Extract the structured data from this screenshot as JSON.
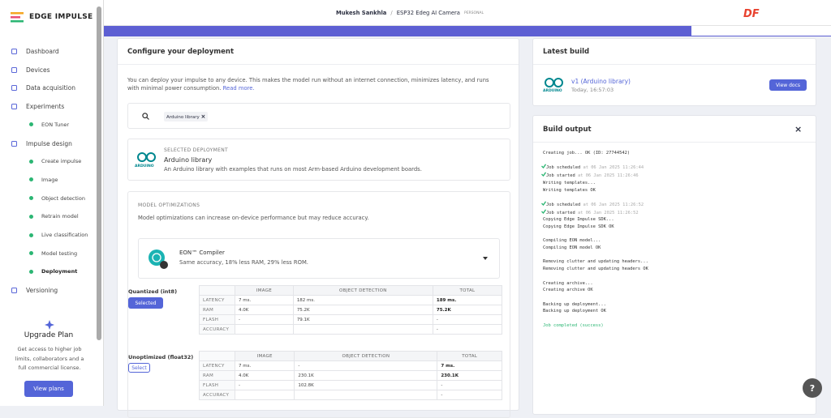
{
  "sidebar": {
    "logo": "EDGE IMPULSE",
    "nav": [
      {
        "label": "Dashboard"
      },
      {
        "label": "Devices"
      },
      {
        "label": "Data acquisition"
      },
      {
        "label": "Experiments",
        "children": [
          "EON Tuner"
        ]
      },
      {
        "label": "Impulse design",
        "children": [
          "Create impulse",
          "Image",
          "Object detection",
          "Retrain model",
          "Live classification",
          "Model testing",
          "Deployment"
        ]
      },
      {
        "label": "Versioning"
      }
    ],
    "active": "Deployment",
    "upgrade": {
      "title": "Upgrade Plan",
      "text": "Get access to higher job limits, collaborators and a full commercial license.",
      "button": "View plans"
    }
  },
  "header": {
    "user": "Mukesh Sankhla",
    "separator": "/",
    "project": "ESP32 Edeg AI Camera",
    "badge": "PERSONAL",
    "brand": "DF"
  },
  "configure": {
    "title": "Configure your deployment",
    "description": "You can deploy your impulse to any device. This makes the model run without an internet connection, minimizes latency, and runs with minimal power consumption.",
    "read_more": "Read more.",
    "search_chip": "Arduino library",
    "chip_close": "×",
    "selected": {
      "logo_text": "ARDUINO",
      "caption": "SELECTED DEPLOYMENT",
      "name": "Arduino library",
      "description": "An Arduino library with examples that runs on most Arm-based Arduino development boards."
    },
    "optimizations": {
      "caption": "MODEL OPTIMIZATIONS",
      "description": "Model optimizations can increase on-device performance but may reduce accuracy.",
      "compiler": {
        "name": "EON™ Compiler",
        "description": "Same accuracy, 18% less RAM, 29% less ROM."
      },
      "columns": [
        "IMAGE",
        "OBJECT DETECTION",
        "TOTAL"
      ],
      "variants": [
        {
          "name": "Quantized (int8)",
          "button": "Selected",
          "rows": [
            [
              "LATENCY",
              "7 ms.",
              "182 ms.",
              "189 ms."
            ],
            [
              "RAM",
              "4.0K",
              "75.2K",
              "75.2K"
            ],
            [
              "FLASH",
              "-",
              "79.1K",
              "-"
            ],
            [
              "ACCURACY",
              null,
              null,
              "-"
            ]
          ]
        },
        {
          "name": "Unoptimized (float32)",
          "button": "Select",
          "rows": [
            [
              "LATENCY",
              "7 ms.",
              "-",
              "7 ms."
            ],
            [
              "RAM",
              "4.0K",
              "230.1K",
              "230.1K"
            ],
            [
              "FLASH",
              "-",
              "102.8K",
              "-"
            ],
            [
              "ACCURACY",
              null,
              null,
              "-"
            ]
          ]
        }
      ]
    }
  },
  "latest_build": {
    "title": "Latest build",
    "logo_text": "ARDUINO",
    "version": "v1 (Arduino library)",
    "time": "Today, 16:57:03",
    "button": "View docs"
  },
  "build_output": {
    "title": "Build output",
    "close": "×",
    "log": [
      [
        {
          "text": "Creating job... OK (ID: 27744542)"
        }
      ],
      [
        {
          "text": "Job scheduled",
          "time": "at 06 Jan 2025 11:26:44"
        },
        {
          "text": "Job started",
          "time": "at 06 Jan 2025 11:26:46"
        },
        {
          "text": "Writing templates..."
        },
        {
          "text": "Writing templates OK"
        }
      ],
      [
        {
          "text": "Job scheduled",
          "time": "at 06 Jan 2025 11:26:52"
        },
        {
          "text": "Job started",
          "time": "at 06 Jan 2025 11:26:52"
        },
        {
          "text": "Copying Edge Impulse SDK..."
        },
        {
          "text": "Copying Edge Impulse SDK OK"
        }
      ],
      [
        {
          "text": "Compiling EON model..."
        },
        {
          "text": "Compiling EON model OK"
        }
      ],
      [
        {
          "text": "Removing clutter and updating headers..."
        },
        {
          "text": "Removing clutter and updating headers OK"
        }
      ],
      [
        {
          "text": "Creating archive..."
        },
        {
          "text": "Creating archive OK"
        }
      ],
      [
        {
          "text": "Backing up deployment..."
        },
        {
          "text": "Backing up deployment OK"
        }
      ],
      [
        {
          "text": "Job completed (success)"
        }
      ]
    ]
  },
  "help": "?"
}
